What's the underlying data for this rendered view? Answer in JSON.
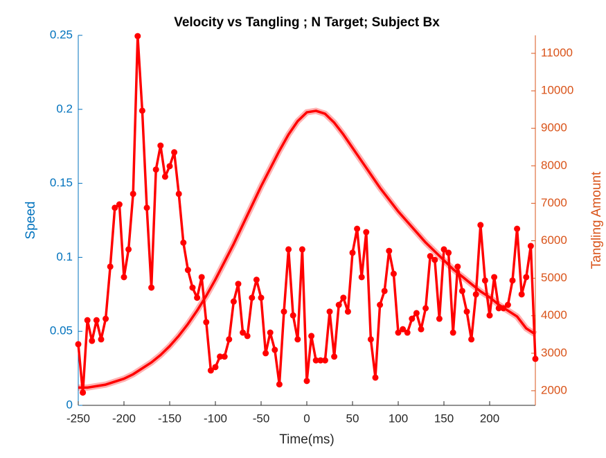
{
  "chart_data": {
    "type": "line",
    "title": "Velocity vs Tangling ; N Target; Subject Bx",
    "xlabel": "Time(ms)",
    "ylabel": "Speed",
    "y2label": "Tangling Amount",
    "xlim": [
      -250,
      250
    ],
    "xticks": [
      -250,
      -200,
      -150,
      -100,
      -50,
      0,
      50,
      100,
      150,
      200
    ],
    "ylim": [
      0,
      0.25
    ],
    "yticks": [
      0,
      0.05,
      0.1,
      0.15,
      0.2,
      0.25
    ],
    "y2lim": [
      1610,
      11480
    ],
    "y2ticks": [
      2000,
      3000,
      4000,
      5000,
      6000,
      7000,
      8000,
      9000,
      10000,
      11000
    ],
    "ycolor": "#0072bd",
    "y2color": "#d95319",
    "grid": false,
    "series": [
      {
        "color": "#ff0000",
        "axis": "y",
        "markers": false,
        "x": [
          -250,
          -240,
          -230,
          -220,
          -210,
          -200,
          -190,
          -180,
          -170,
          -160,
          -150,
          -140,
          -130,
          -120,
          -110,
          -100,
          -90,
          -80,
          -70,
          -60,
          -50,
          -40,
          -30,
          -20,
          -10,
          0,
          10,
          20,
          30,
          40,
          50,
          60,
          70,
          80,
          90,
          100,
          110,
          120,
          130,
          140,
          150,
          160,
          170,
          180,
          190,
          200,
          210,
          220,
          230,
          240,
          250
        ],
        "values": [
          0.012,
          0.012,
          0.013,
          0.014,
          0.016,
          0.018,
          0.021,
          0.025,
          0.029,
          0.034,
          0.04,
          0.047,
          0.055,
          0.064,
          0.074,
          0.085,
          0.097,
          0.109,
          0.122,
          0.135,
          0.148,
          0.16,
          0.172,
          0.183,
          0.192,
          0.198,
          0.199,
          0.197,
          0.191,
          0.183,
          0.174,
          0.165,
          0.156,
          0.147,
          0.139,
          0.131,
          0.124,
          0.117,
          0.11,
          0.104,
          0.098,
          0.092,
          0.087,
          0.082,
          0.077,
          0.073,
          0.068,
          0.064,
          0.06,
          0.052,
          0.048
        ]
      },
      {
        "color": "#ff0000",
        "axis": "y2",
        "markers": true,
        "x": [
          -250,
          -245,
          -240,
          -235,
          -230,
          -225,
          -220,
          -215,
          -210,
          -205,
          -200,
          -195,
          -190,
          -185,
          -180,
          -175,
          -170,
          -165,
          -160,
          -155,
          -150,
          -145,
          -140,
          -135,
          -130,
          -125,
          -120,
          -115,
          -110,
          -105,
          -100,
          -95,
          -90,
          -85,
          -80,
          -75,
          -70,
          -65,
          -60,
          -55,
          -50,
          -45,
          -40,
          -35,
          -30,
          -25,
          -20,
          -15,
          -10,
          -5,
          0,
          5,
          10,
          15,
          20,
          25,
          30,
          35,
          40,
          45,
          50,
          55,
          60,
          65,
          70,
          75,
          80,
          85,
          90,
          95,
          100,
          105,
          110,
          115,
          120,
          125,
          130,
          135,
          140,
          145,
          150,
          155,
          160,
          165,
          170,
          175,
          180,
          185,
          190,
          195,
          200,
          205,
          210,
          215,
          220,
          225,
          230,
          235,
          240,
          245,
          250
        ],
        "values": [
          3240,
          1950,
          3880,
          3330,
          3880,
          3370,
          3920,
          5310,
          6880,
          6970,
          5030,
          5770,
          7250,
          11460,
          9470,
          6880,
          4750,
          7900,
          8540,
          7710,
          7990,
          8360,
          7250,
          5950,
          5220,
          4750,
          4480,
          5030,
          3830,
          2540,
          2630,
          2910,
          2910,
          3370,
          4380,
          4850,
          3550,
          3460,
          4480,
          4960,
          4480,
          3000,
          3550,
          3090,
          2170,
          4110,
          5770,
          4010,
          3370,
          5770,
          2260,
          3460,
          2810,
          2810,
          2810,
          4110,
          2910,
          4290,
          4480,
          4110,
          5680,
          6320,
          5030,
          6230,
          3370,
          2350,
          4290,
          4660,
          5730,
          5120,
          3550,
          3640,
          3550,
          3920,
          4070,
          3640,
          4200,
          5590,
          5490,
          3920,
          5770,
          5680,
          3550,
          5310,
          4660,
          4110,
          3370,
          4570,
          6420,
          4940,
          4010,
          5030,
          4200,
          4200,
          4290,
          4940,
          6320,
          4570,
          5030,
          5860,
          2850
        ]
      }
    ]
  }
}
